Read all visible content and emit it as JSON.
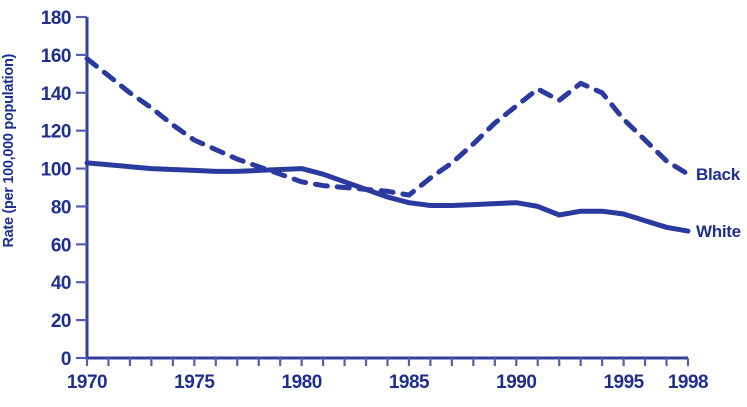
{
  "chart_data": {
    "type": "line",
    "title": "",
    "xlabel": "",
    "ylabel": "Rate (per 100,000 population)",
    "xlim": [
      1970,
      1998
    ],
    "ylim": [
      0,
      180
    ],
    "grid": false,
    "legend_position": "right-of-line-ends",
    "x": [
      1970,
      1971,
      1972,
      1973,
      1974,
      1975,
      1976,
      1977,
      1978,
      1979,
      1980,
      1981,
      1982,
      1983,
      1984,
      1985,
      1986,
      1987,
      1988,
      1989,
      1990,
      1991,
      1992,
      1993,
      1994,
      1995,
      1996,
      1997,
      1998
    ],
    "x_labeled_ticks": [
      1970,
      1975,
      1980,
      1985,
      1990,
      1995,
      1998
    ],
    "y_ticks": [
      0,
      20,
      40,
      60,
      80,
      100,
      120,
      140,
      160,
      180
    ],
    "series": [
      {
        "name": "Black",
        "line_style": "dashed",
        "values": [
          158,
          149,
          140,
          132,
          123,
          115,
          110,
          105,
          101,
          97,
          93,
          91,
          90,
          89,
          88,
          86,
          95,
          103,
          113,
          124,
          133,
          142,
          136,
          145,
          140,
          126,
          115,
          104,
          97
        ]
      },
      {
        "name": "White",
        "line_style": "solid",
        "values": [
          103,
          102,
          101,
          100,
          99.5,
          99,
          98.5,
          98.5,
          99,
          99.5,
          100,
          97,
          93,
          89,
          85,
          82,
          80.5,
          80.5,
          81,
          81.5,
          82,
          80,
          75.5,
          77.5,
          77.5,
          76,
          72.5,
          69,
          67
        ]
      }
    ],
    "colors": {
      "line": "#2B3A9E",
      "text": "#1F2F8F",
      "axis": "#32409B",
      "tick": "#5360AE",
      "background": "#FFFFFF"
    }
  }
}
